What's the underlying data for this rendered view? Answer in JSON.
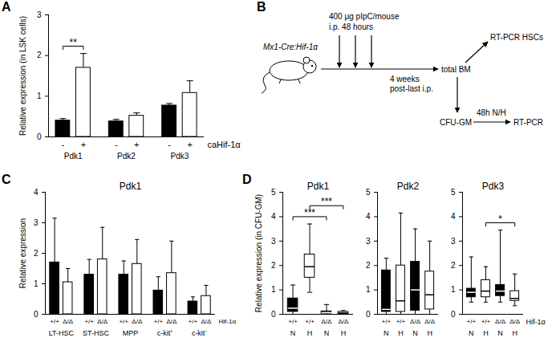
{
  "chart_data": [
    {
      "panel": "A",
      "type": "bar",
      "y_label": "Relative expression (in LSK cells)",
      "categories": [
        "Pdk1",
        "Pdk2",
        "Pdk3"
      ],
      "group_label": "caHif-1α",
      "series": [
        {
          "name": "-",
          "color": "#000000",
          "values": [
            0.4,
            0.38,
            0.77
          ],
          "errors": [
            0.05,
            0.05,
            0.05
          ]
        },
        {
          "name": "+",
          "color": "#ffffff",
          "values": [
            1.7,
            0.52,
            1.08
          ],
          "errors": [
            0.35,
            0.07,
            0.3
          ]
        }
      ],
      "ylim": [
        0,
        3
      ],
      "yticks": [
        0,
        1,
        2,
        3
      ],
      "annotations": [
        {
          "text": "**",
          "category": "Pdk1"
        }
      ]
    },
    {
      "panel": "C",
      "type": "bar",
      "title": "Pdk1",
      "y_label": "Relative expression",
      "categories": [
        "LT-HSC",
        "ST-HSC",
        "MPP",
        "c-kit⁺",
        "c-kit⁻"
      ],
      "group_label": "Hif-1α",
      "series": [
        {
          "name": "+/+",
          "color": "#000000",
          "values": [
            1.7,
            1.3,
            1.3,
            0.78,
            0.42
          ],
          "errors": [
            1.45,
            0.5,
            0.45,
            0.45,
            0.15
          ]
        },
        {
          "name": "Δ/Δ",
          "color": "#ffffff",
          "values": [
            1.05,
            1.8,
            1.65,
            1.35,
            0.6
          ],
          "errors": [
            0.45,
            1.05,
            0.8,
            1.05,
            0.35
          ]
        }
      ],
      "ylim": [
        0,
        4
      ],
      "yticks": [
        0,
        1,
        2,
        3,
        4
      ]
    },
    {
      "panel": "D",
      "type": "box",
      "title": "Pdk1",
      "y_label": "Relative expression (in CFU-GM)",
      "categories": [
        "+/+",
        "+/+",
        "Δ/Δ",
        "Δ/Δ"
      ],
      "subcategories": [
        "N",
        "H",
        "N",
        "H"
      ],
      "colors": [
        "#000000",
        "#ffffff",
        "#000000",
        "#ffffff"
      ],
      "boxes": [
        {
          "min": 0,
          "q1": 0.1,
          "median": 0.25,
          "q3": 0.65,
          "max": 1.2
        },
        {
          "min": 0.9,
          "q1": 1.5,
          "median": 1.95,
          "q3": 2.45,
          "max": 3.7
        },
        {
          "min": 0,
          "q1": 0.03,
          "median": 0.07,
          "q3": 0.12,
          "max": 0.4
        },
        {
          "min": 0,
          "q1": 0.02,
          "median": 0.05,
          "q3": 0.1,
          "max": 0.15
        }
      ],
      "ylim": [
        0,
        5
      ],
      "yticks": [
        0,
        1,
        2,
        3,
        4,
        5
      ],
      "annotations": [
        {
          "text": "***",
          "from": 0,
          "to": 2
        },
        {
          "text": "***",
          "from": 1,
          "to": 3
        }
      ]
    },
    {
      "type": "box",
      "title": "Pdk2",
      "categories": [
        "+/+",
        "+/+",
        "Δ/Δ",
        "Δ/Δ"
      ],
      "subcategories": [
        "N",
        "H",
        "N",
        "H"
      ],
      "colors": [
        "#000000",
        "#ffffff",
        "#000000",
        "#ffffff"
      ],
      "boxes": [
        {
          "min": 0,
          "q1": 0.1,
          "median": 0.2,
          "q3": 1.8,
          "max": 2.3
        },
        {
          "min": 0,
          "q1": 0.1,
          "median": 0.55,
          "q3": 2.0,
          "max": 4.15
        },
        {
          "min": 0,
          "q1": 0.15,
          "median": 1.0,
          "q3": 2.15,
          "max": 3.5
        },
        {
          "min": 0,
          "q1": 0.2,
          "median": 0.8,
          "q3": 1.75,
          "max": 3.0
        }
      ],
      "ylim": [
        0,
        5
      ],
      "yticks": [
        0,
        1,
        2,
        3,
        4,
        5
      ]
    },
    {
      "type": "box",
      "title": "Pdk3",
      "group_label": "Hif-1α",
      "categories": [
        "+/+",
        "+/+",
        "Δ/Δ",
        "Δ/Δ"
      ],
      "subcategories": [
        "N",
        "H",
        "N",
        "H"
      ],
      "colors": [
        "#000000",
        "#ffffff",
        "#000000",
        "#ffffff"
      ],
      "boxes": [
        {
          "min": 0.5,
          "q1": 0.7,
          "median": 0.9,
          "q3": 1.05,
          "max": 2.35
        },
        {
          "min": 0.5,
          "q1": 0.7,
          "median": 0.95,
          "q3": 1.4,
          "max": 1.95
        },
        {
          "min": 0.5,
          "q1": 0.75,
          "median": 0.95,
          "q3": 1.2,
          "max": 3.45
        },
        {
          "min": 0.35,
          "q1": 0.55,
          "median": 0.65,
          "q3": 0.95,
          "max": 1.65
        }
      ],
      "ylim": [
        0,
        5
      ],
      "yticks": [
        0,
        1,
        2,
        3,
        4,
        5
      ],
      "annotations": [
        {
          "text": "*",
          "from": 1,
          "to": 3
        }
      ]
    }
  ],
  "diagram": {
    "panel": "B",
    "mouse": "Mx1-Cre:Hif-1α",
    "injection": [
      "400 μg pIpC/mouse",
      "i.p. 48 hours"
    ],
    "wait": [
      "4 weeks",
      "post-last i.p."
    ],
    "harvest": "total BM",
    "branch_up": "RT-PCR HSCs",
    "culture": "CFU-GM",
    "condition": "48h N/H",
    "readout": "RT-PCR"
  }
}
